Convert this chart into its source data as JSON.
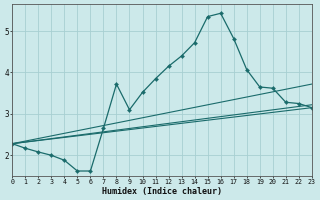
{
  "xlabel": "Humidex (Indice chaleur)",
  "bg_color": "#cce9ea",
  "grid_color": "#a8cfd2",
  "line_color": "#1a6b6b",
  "xlim": [
    0,
    23
  ],
  "ylim": [
    1.5,
    5.65
  ],
  "xticks": [
    0,
    1,
    2,
    3,
    4,
    5,
    6,
    7,
    8,
    9,
    10,
    11,
    12,
    13,
    14,
    15,
    16,
    17,
    18,
    19,
    20,
    21,
    22,
    23
  ],
  "yticks": [
    2,
    3,
    4,
    5
  ],
  "main_x": [
    0,
    1,
    2,
    3,
    4,
    5,
    6,
    7,
    8,
    9,
    10,
    11,
    12,
    13,
    14,
    15,
    16,
    17,
    18,
    19,
    20,
    21,
    22,
    23
  ],
  "main_y": [
    2.28,
    2.17,
    2.08,
    2.0,
    1.88,
    1.62,
    1.62,
    2.65,
    3.72,
    3.1,
    3.52,
    3.85,
    4.15,
    4.4,
    4.72,
    5.35,
    5.43,
    4.82,
    4.07,
    3.65,
    3.62,
    3.28,
    3.25,
    3.15
  ],
  "flat_lines": [
    {
      "x": [
        0,
        23
      ],
      "y": [
        2.28,
        3.15
      ]
    },
    {
      "x": [
        0,
        23
      ],
      "y": [
        2.28,
        3.22
      ]
    },
    {
      "x": [
        0,
        23
      ],
      "y": [
        2.28,
        3.72
      ]
    }
  ]
}
